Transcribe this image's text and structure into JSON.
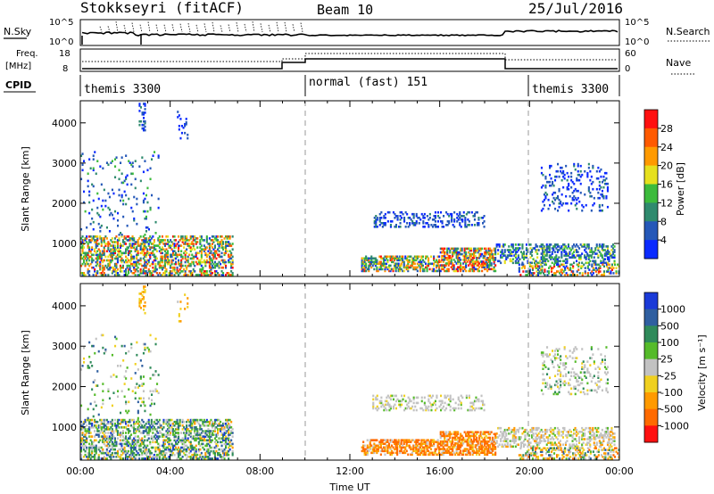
{
  "header": {
    "title": "Stokkseyri (fitACF)",
    "beam": "Beam 10",
    "date": "25/Jul/2016"
  },
  "status_panels": {
    "nsky_label": "N.Sky",
    "nsearch_label": "N.Search",
    "left_ticks": [
      "10^5",
      "10^0"
    ],
    "right_ticks": [
      "10^5",
      "10^0"
    ],
    "freq_label_1": "Freq.",
    "freq_label_2": "[MHz]",
    "freq_ticks": [
      "18",
      "8"
    ],
    "nave_label": "Nave",
    "nave_ticks": [
      "60",
      "0"
    ],
    "cpid_label": "CPID",
    "cpid_segments": [
      {
        "label": "themis 3300",
        "start_hour": 0,
        "end_hour": 10
      },
      {
        "label": "normal (fast) 151",
        "start_hour": 10,
        "end_hour": 20
      },
      {
        "label": "themis 3300",
        "start_hour": 20,
        "end_hour": 24
      }
    ]
  },
  "chart_data": [
    {
      "type": "heatmap",
      "name": "power",
      "ylabel": "Slant Range [km]",
      "xlim": [
        0,
        24
      ],
      "ylim": [
        180,
        4550
      ],
      "y_ticks": [
        1000,
        2000,
        3000,
        4000
      ],
      "colorbar": {
        "label": "Power [dB]",
        "ticks": [
          "4",
          "8",
          "12",
          "16",
          "20",
          "24",
          "28"
        ],
        "colors": [
          "#0a2aff",
          "#2558b8",
          "#2f8a6e",
          "#3cbb3c",
          "#e6e01e",
          "#ff9a00",
          "#ff5a00",
          "#ff1010"
        ]
      },
      "scatter_regions": [
        {
          "t0": 0,
          "t1": 6.8,
          "r0": 200,
          "r1": 1200,
          "density": 0.45,
          "weights": [
            1,
            2,
            3,
            3,
            2,
            2,
            2,
            1
          ]
        },
        {
          "t0": 0,
          "t1": 3.5,
          "r0": 1200,
          "r1": 3300,
          "density": 0.05,
          "weights": [
            2,
            3,
            2,
            1,
            0,
            0,
            0,
            0
          ]
        },
        {
          "t0": 2.6,
          "t1": 2.9,
          "r0": 3800,
          "r1": 4500,
          "density": 0.25,
          "weights": [
            2,
            3,
            1,
            0,
            0,
            0,
            0,
            0
          ]
        },
        {
          "t0": 4.3,
          "t1": 4.8,
          "r0": 3600,
          "r1": 4300,
          "density": 0.1,
          "weights": [
            2,
            2,
            0,
            0,
            0,
            0,
            0,
            0
          ]
        },
        {
          "t0": 12.5,
          "t1": 16,
          "r0": 300,
          "r1": 700,
          "density": 0.55,
          "weights": [
            1,
            2,
            3,
            3,
            2,
            3,
            2,
            1
          ]
        },
        {
          "t0": 16,
          "t1": 18.5,
          "r0": 300,
          "r1": 900,
          "density": 0.6,
          "weights": [
            1,
            2,
            2,
            2,
            2,
            3,
            3,
            2
          ]
        },
        {
          "t0": 13,
          "t1": 18,
          "r0": 1400,
          "r1": 1800,
          "density": 0.25,
          "weights": [
            3,
            3,
            1,
            0,
            0,
            0,
            0,
            0
          ]
        },
        {
          "t0": 18.5,
          "t1": 23.8,
          "r0": 500,
          "r1": 1000,
          "density": 0.4,
          "weights": [
            2,
            3,
            3,
            2,
            1,
            0,
            0,
            0
          ]
        },
        {
          "t0": 20.5,
          "t1": 23.5,
          "r0": 1800,
          "r1": 3000,
          "density": 0.15,
          "weights": [
            3,
            3,
            1,
            0,
            0,
            0,
            0,
            0
          ]
        },
        {
          "t0": 19.5,
          "t1": 24,
          "r0": 200,
          "r1": 500,
          "density": 0.4,
          "weights": [
            1,
            2,
            2,
            2,
            2,
            2,
            1,
            1
          ]
        }
      ]
    },
    {
      "type": "heatmap",
      "name": "velocity",
      "ylabel": "Slant Range [km]",
      "xlabel": "Time UT",
      "xlim": [
        0,
        24
      ],
      "ylim": [
        180,
        4550
      ],
      "y_ticks": [
        1000,
        2000,
        3000,
        4000
      ],
      "x_ticks": [
        "00:00",
        "04:00",
        "08:00",
        "12:00",
        "16:00",
        "20:00",
        "00:00"
      ],
      "colorbar": {
        "label": "Velocity [m s⁻¹]",
        "ticks": [
          "1000",
          "500",
          "100",
          "25",
          "-25",
          "-100",
          "-500",
          "-1000"
        ],
        "colors": [
          "#1a3ad8",
          "#2f5fa0",
          "#2f8a5a",
          "#55bb2a",
          "#c2c2c2",
          "#f0d020",
          "#ff9a00",
          "#ff6a00",
          "#ff1010"
        ]
      },
      "scatter_regions": [
        {
          "t0": 0,
          "t1": 6.8,
          "r0": 200,
          "r1": 1200,
          "density": 0.45,
          "weights": [
            1,
            2,
            3,
            3,
            3,
            1,
            1,
            0,
            0
          ]
        },
        {
          "t0": 0,
          "t1": 3.5,
          "r0": 1200,
          "r1": 3300,
          "density": 0.05,
          "weights": [
            0,
            1,
            2,
            2,
            2,
            1,
            0,
            0,
            0
          ]
        },
        {
          "t0": 2.6,
          "t1": 2.9,
          "r0": 3800,
          "r1": 4500,
          "density": 0.25,
          "weights": [
            0,
            0,
            0,
            0,
            0,
            2,
            3,
            0,
            0
          ]
        },
        {
          "t0": 4.3,
          "t1": 4.8,
          "r0": 3600,
          "r1": 4300,
          "density": 0.1,
          "weights": [
            0,
            0,
            0,
            0,
            1,
            2,
            2,
            0,
            0
          ]
        },
        {
          "t0": 12.5,
          "t1": 16,
          "r0": 300,
          "r1": 700,
          "density": 0.55,
          "weights": [
            0,
            0,
            0,
            0,
            1,
            1,
            3,
            5,
            0
          ]
        },
        {
          "t0": 16,
          "t1": 18.5,
          "r0": 300,
          "r1": 900,
          "density": 0.6,
          "weights": [
            0,
            0,
            0,
            0,
            1,
            1,
            3,
            5,
            0
          ]
        },
        {
          "t0": 13,
          "t1": 18,
          "r0": 1400,
          "r1": 1800,
          "density": 0.25,
          "weights": [
            0,
            0,
            0,
            1,
            5,
            1,
            0,
            0,
            0
          ]
        },
        {
          "t0": 18.5,
          "t1": 23.8,
          "r0": 500,
          "r1": 1000,
          "density": 0.4,
          "weights": [
            0,
            0,
            0,
            1,
            6,
            1,
            1,
            0,
            0
          ]
        },
        {
          "t0": 20.5,
          "t1": 23.5,
          "r0": 1800,
          "r1": 3000,
          "density": 0.15,
          "weights": [
            0,
            0,
            1,
            1,
            4,
            1,
            0,
            0,
            0
          ]
        },
        {
          "t0": 19.5,
          "t1": 24,
          "r0": 200,
          "r1": 500,
          "density": 0.4,
          "weights": [
            0,
            1,
            1,
            1,
            2,
            2,
            2,
            1,
            0
          ]
        }
      ]
    }
  ]
}
